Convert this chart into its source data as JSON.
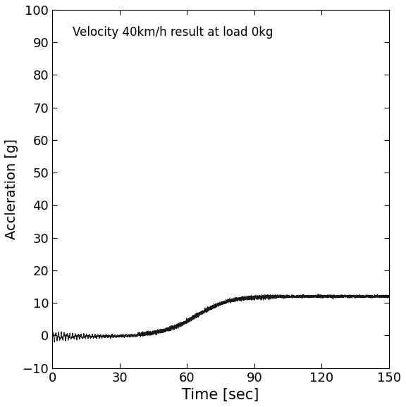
{
  "title": "Velocity 40km/h result at load 0kg",
  "xlabel": "Time [sec]",
  "ylabel": "Accleration [g]",
  "xlim": [
    0,
    150
  ],
  "ylim": [
    -10,
    100
  ],
  "xticks": [
    0,
    30,
    60,
    90,
    120,
    150
  ],
  "yticks": [
    -10,
    0,
    10,
    20,
    30,
    40,
    50,
    60,
    70,
    80,
    90,
    100
  ],
  "line_color": "#000000",
  "background_color": "#ffffff",
  "figsize": [
    5.76,
    5.78
  ],
  "dpi": 100,
  "plateau_value": 12.0,
  "rise_start": 38,
  "rise_end": 90
}
